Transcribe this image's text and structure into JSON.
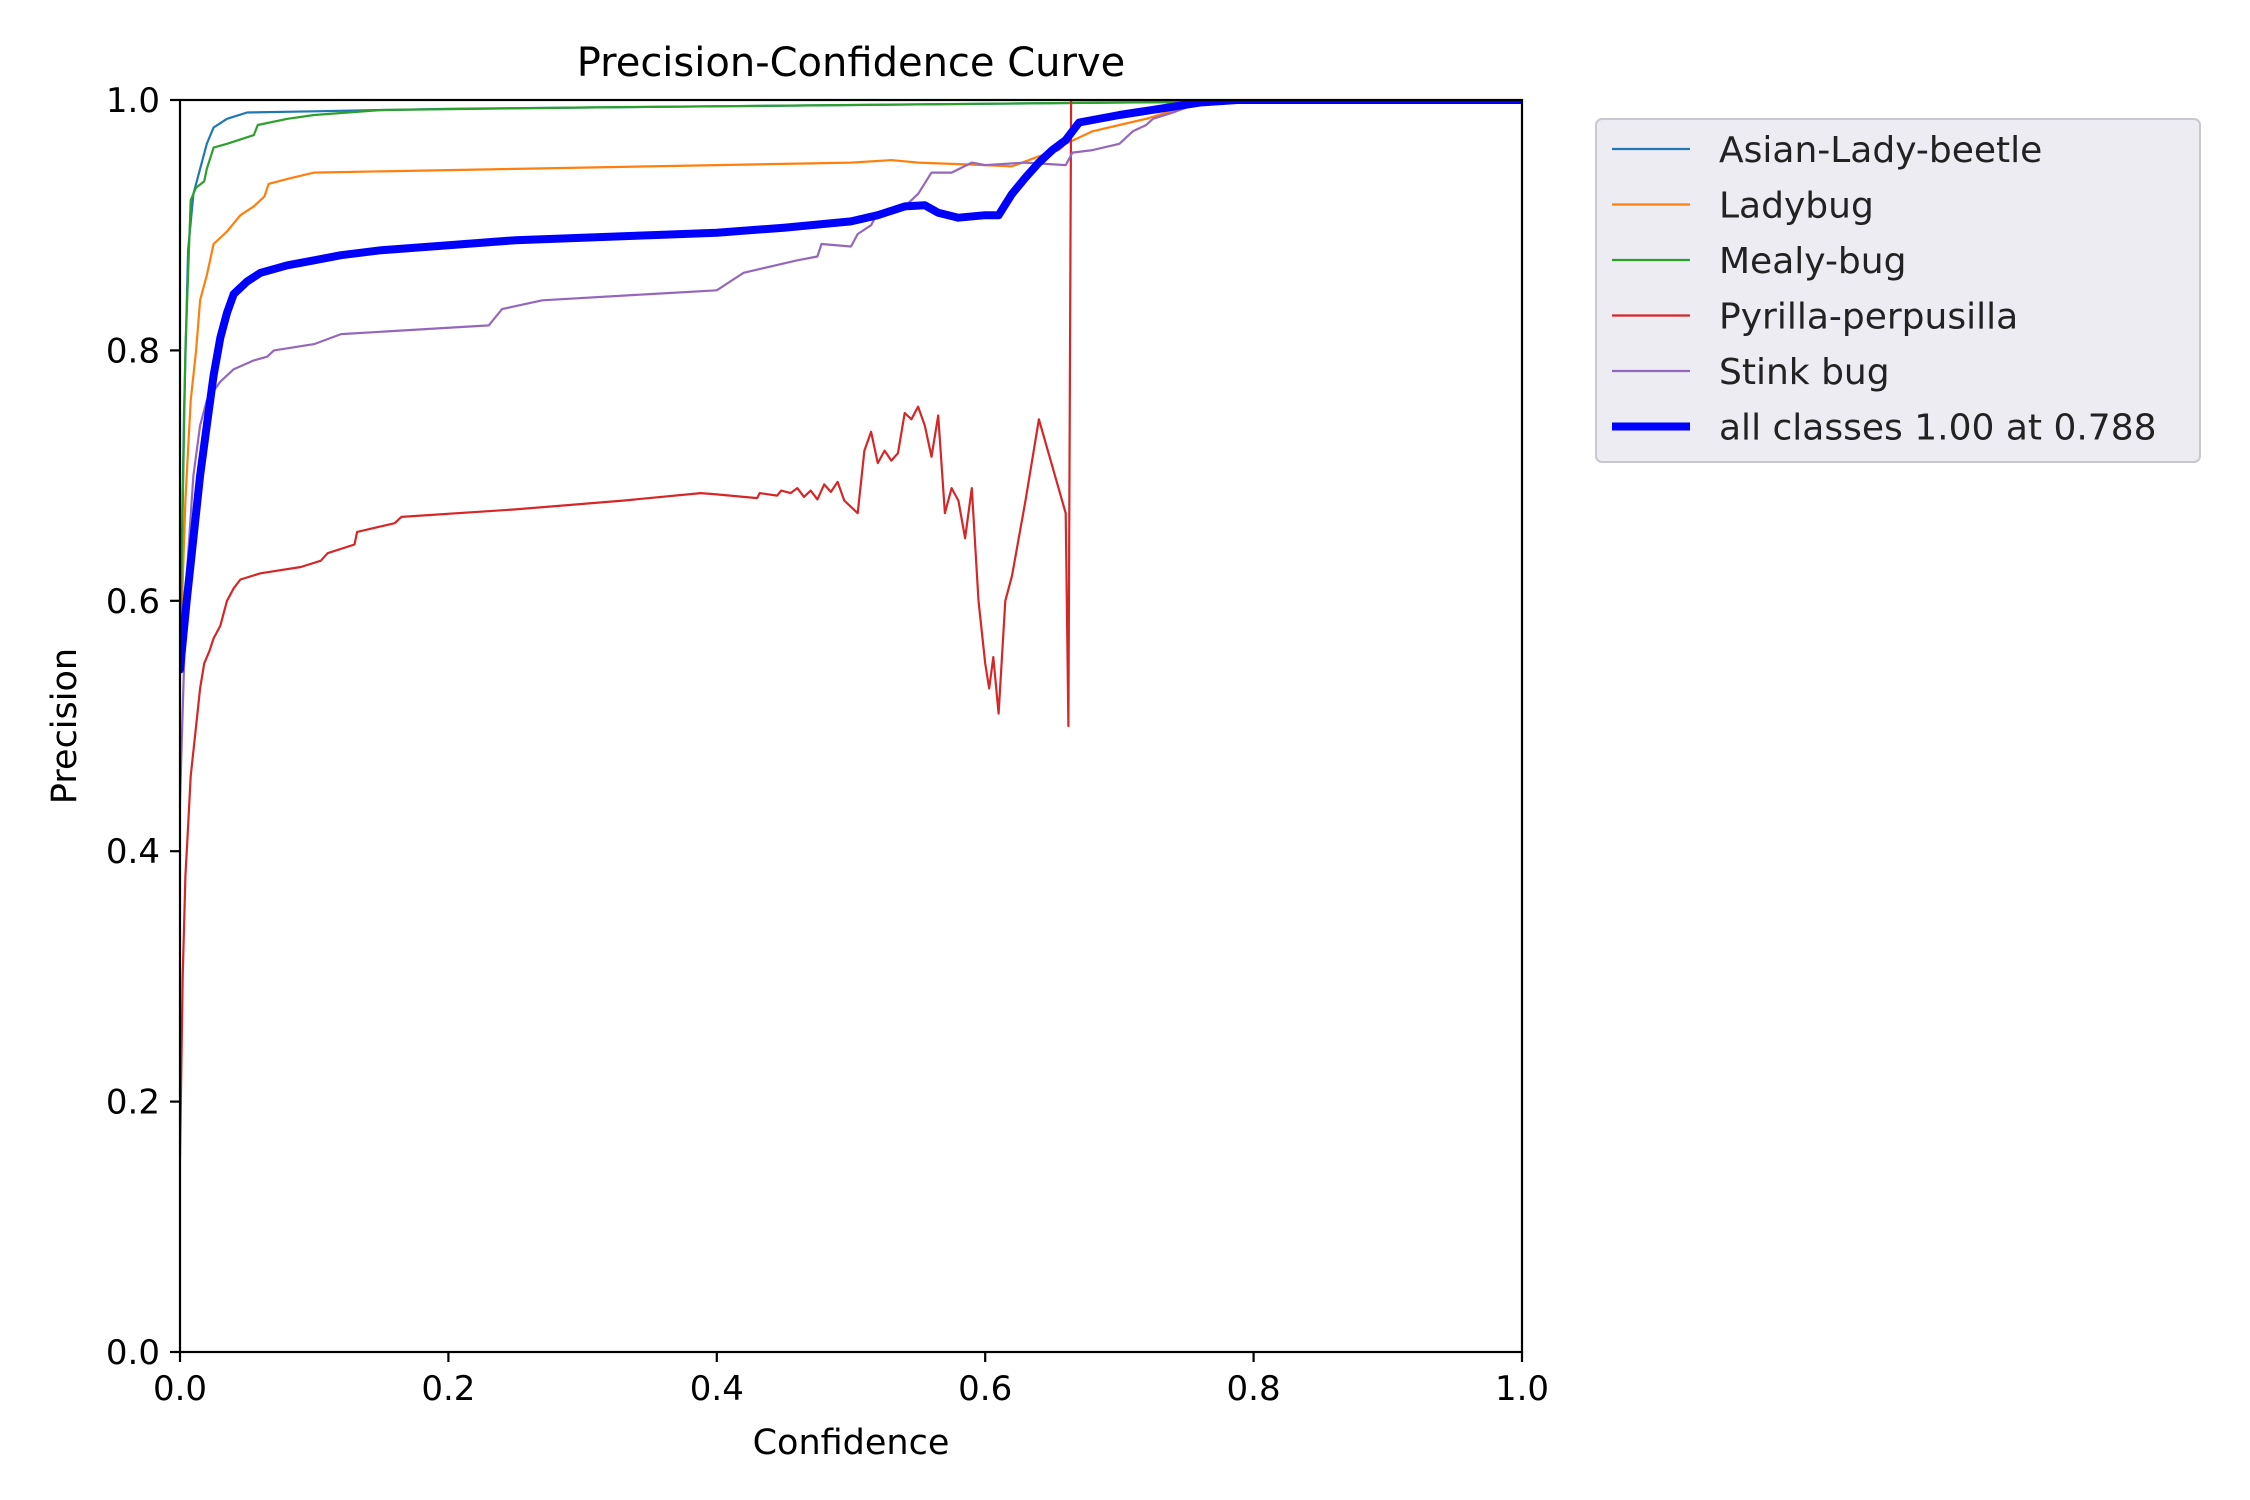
{
  "chart_data": {
    "type": "line",
    "title": "Precision-Confidence Curve",
    "xlabel": "Confidence",
    "ylabel": "Precision",
    "xlim": [
      0,
      1
    ],
    "ylim": [
      0,
      1
    ],
    "xticks": [
      "0.0",
      "0.2",
      "0.4",
      "0.6",
      "0.8",
      "1.0"
    ],
    "yticks": [
      "0.0",
      "0.2",
      "0.4",
      "0.6",
      "0.8",
      "1.0"
    ],
    "grid": false,
    "legend_position": "outside-top-right",
    "series": [
      {
        "name": "Asian-Lady-beetle",
        "color": "#1f77b4",
        "width": 2.2,
        "points": [
          [
            0,
            0.55
          ],
          [
            0.003,
            0.75
          ],
          [
            0.006,
            0.88
          ],
          [
            0.01,
            0.925
          ],
          [
            0.015,
            0.945
          ],
          [
            0.02,
            0.965
          ],
          [
            0.025,
            0.978
          ],
          [
            0.035,
            0.985
          ],
          [
            0.05,
            0.99
          ],
          [
            0.1,
            0.991
          ],
          [
            0.2,
            0.993
          ],
          [
            0.4,
            0.995
          ],
          [
            0.6,
            0.997
          ],
          [
            0.8,
            0.999
          ],
          [
            1.0,
            1.0
          ]
        ]
      },
      {
        "name": "Ladybug",
        "color": "#ff7f0e",
        "width": 2.2,
        "points": [
          [
            0,
            0.55
          ],
          [
            0.004,
            0.68
          ],
          [
            0.008,
            0.76
          ],
          [
            0.012,
            0.8
          ],
          [
            0.015,
            0.84
          ],
          [
            0.02,
            0.86
          ],
          [
            0.025,
            0.885
          ],
          [
            0.035,
            0.895
          ],
          [
            0.045,
            0.908
          ],
          [
            0.055,
            0.915
          ],
          [
            0.063,
            0.923
          ],
          [
            0.066,
            0.933
          ],
          [
            0.08,
            0.937
          ],
          [
            0.1,
            0.942
          ],
          [
            0.2,
            0.944
          ],
          [
            0.3,
            0.946
          ],
          [
            0.4,
            0.948
          ],
          [
            0.5,
            0.95
          ],
          [
            0.53,
            0.952
          ],
          [
            0.54,
            0.951
          ],
          [
            0.55,
            0.95
          ],
          [
            0.6,
            0.948
          ],
          [
            0.62,
            0.947
          ],
          [
            0.64,
            0.955
          ],
          [
            0.655,
            0.96
          ],
          [
            0.66,
            0.965
          ],
          [
            0.68,
            0.975
          ],
          [
            0.7,
            0.98
          ],
          [
            0.72,
            0.985
          ],
          [
            0.75,
            0.995
          ],
          [
            0.8,
            1.0
          ],
          [
            1.0,
            1.0
          ]
        ]
      },
      {
        "name": "Mealy-bug",
        "color": "#2ca02c",
        "width": 2.2,
        "points": [
          [
            0,
            0.55
          ],
          [
            0.004,
            0.8
          ],
          [
            0.008,
            0.92
          ],
          [
            0.012,
            0.93
          ],
          [
            0.018,
            0.935
          ],
          [
            0.02,
            0.945
          ],
          [
            0.025,
            0.962
          ],
          [
            0.035,
            0.965
          ],
          [
            0.055,
            0.972
          ],
          [
            0.058,
            0.98
          ],
          [
            0.08,
            0.985
          ],
          [
            0.1,
            0.988
          ],
          [
            0.15,
            0.992
          ],
          [
            0.3,
            0.994
          ],
          [
            0.5,
            0.996
          ],
          [
            0.7,
            0.998
          ],
          [
            1.0,
            1.0
          ]
        ]
      },
      {
        "name": "Pyrilla-perpusilla",
        "color": "#d62728",
        "width": 2.2,
        "points": [
          [
            0,
            0.155
          ],
          [
            0.002,
            0.3
          ],
          [
            0.004,
            0.38
          ],
          [
            0.006,
            0.42
          ],
          [
            0.008,
            0.46
          ],
          [
            0.01,
            0.48
          ],
          [
            0.012,
            0.5
          ],
          [
            0.015,
            0.53
          ],
          [
            0.018,
            0.55
          ],
          [
            0.022,
            0.56
          ],
          [
            0.025,
            0.57
          ],
          [
            0.03,
            0.58
          ],
          [
            0.035,
            0.6
          ],
          [
            0.04,
            0.61
          ],
          [
            0.045,
            0.617
          ],
          [
            0.06,
            0.622
          ],
          [
            0.09,
            0.627
          ],
          [
            0.105,
            0.632
          ],
          [
            0.11,
            0.638
          ],
          [
            0.13,
            0.645
          ],
          [
            0.132,
            0.655
          ],
          [
            0.16,
            0.662
          ],
          [
            0.165,
            0.667
          ],
          [
            0.25,
            0.673
          ],
          [
            0.33,
            0.68
          ],
          [
            0.388,
            0.686
          ],
          [
            0.4,
            0.685
          ],
          [
            0.43,
            0.682
          ],
          [
            0.432,
            0.686
          ],
          [
            0.445,
            0.684
          ],
          [
            0.448,
            0.688
          ],
          [
            0.455,
            0.686
          ],
          [
            0.46,
            0.69
          ],
          [
            0.465,
            0.683
          ],
          [
            0.47,
            0.688
          ],
          [
            0.475,
            0.681
          ],
          [
            0.48,
            0.693
          ],
          [
            0.485,
            0.687
          ],
          [
            0.49,
            0.695
          ],
          [
            0.495,
            0.68
          ],
          [
            0.505,
            0.67
          ],
          [
            0.51,
            0.72
          ],
          [
            0.515,
            0.735
          ],
          [
            0.52,
            0.71
          ],
          [
            0.525,
            0.72
          ],
          [
            0.53,
            0.712
          ],
          [
            0.535,
            0.718
          ],
          [
            0.54,
            0.75
          ],
          [
            0.545,
            0.745
          ],
          [
            0.55,
            0.755
          ],
          [
            0.555,
            0.74
          ],
          [
            0.56,
            0.715
          ],
          [
            0.565,
            0.748
          ],
          [
            0.57,
            0.67
          ],
          [
            0.575,
            0.69
          ],
          [
            0.58,
            0.68
          ],
          [
            0.585,
            0.65
          ],
          [
            0.59,
            0.69
          ],
          [
            0.595,
            0.6
          ],
          [
            0.6,
            0.55
          ],
          [
            0.603,
            0.53
          ],
          [
            0.606,
            0.555
          ],
          [
            0.61,
            0.51
          ],
          [
            0.615,
            0.6
          ],
          [
            0.62,
            0.62
          ],
          [
            0.63,
            0.68
          ],
          [
            0.64,
            0.745
          ],
          [
            0.66,
            0.67
          ],
          [
            0.662,
            0.5
          ],
          [
            0.664,
            1.0
          ],
          [
            0.7,
            1.0
          ],
          [
            1.0,
            1.0
          ]
        ]
      },
      {
        "name": "Stink bug",
        "color": "#9467bd",
        "width": 2.2,
        "points": [
          [
            0,
            0.44
          ],
          [
            0.005,
            0.62
          ],
          [
            0.01,
            0.7
          ],
          [
            0.015,
            0.74
          ],
          [
            0.02,
            0.76
          ],
          [
            0.03,
            0.775
          ],
          [
            0.04,
            0.785
          ],
          [
            0.055,
            0.792
          ],
          [
            0.065,
            0.795
          ],
          [
            0.07,
            0.8
          ],
          [
            0.1,
            0.805
          ],
          [
            0.12,
            0.813
          ],
          [
            0.23,
            0.82
          ],
          [
            0.24,
            0.833
          ],
          [
            0.27,
            0.84
          ],
          [
            0.35,
            0.845
          ],
          [
            0.4,
            0.848
          ],
          [
            0.41,
            0.855
          ],
          [
            0.42,
            0.862
          ],
          [
            0.46,
            0.872
          ],
          [
            0.475,
            0.875
          ],
          [
            0.478,
            0.885
          ],
          [
            0.5,
            0.883
          ],
          [
            0.505,
            0.893
          ],
          [
            0.515,
            0.9
          ],
          [
            0.52,
            0.91
          ],
          [
            0.54,
            0.915
          ],
          [
            0.55,
            0.925
          ],
          [
            0.56,
            0.942
          ],
          [
            0.575,
            0.942
          ],
          [
            0.59,
            0.95
          ],
          [
            0.6,
            0.948
          ],
          [
            0.63,
            0.95
          ],
          [
            0.66,
            0.948
          ],
          [
            0.665,
            0.958
          ],
          [
            0.68,
            0.96
          ],
          [
            0.7,
            0.965
          ],
          [
            0.71,
            0.975
          ],
          [
            0.72,
            0.98
          ],
          [
            0.725,
            0.985
          ],
          [
            0.74,
            0.99
          ],
          [
            0.76,
            0.998
          ],
          [
            0.8,
            1.0
          ],
          [
            1.0,
            1.0
          ]
        ]
      },
      {
        "name": "all classes 1.00 at 0.788",
        "color": "#0000ff",
        "width": 8,
        "points": [
          [
            0,
            0.545
          ],
          [
            0.005,
            0.6
          ],
          [
            0.01,
            0.65
          ],
          [
            0.015,
            0.7
          ],
          [
            0.02,
            0.74
          ],
          [
            0.025,
            0.78
          ],
          [
            0.03,
            0.81
          ],
          [
            0.035,
            0.83
          ],
          [
            0.04,
            0.845
          ],
          [
            0.05,
            0.855
          ],
          [
            0.06,
            0.862
          ],
          [
            0.08,
            0.868
          ],
          [
            0.1,
            0.872
          ],
          [
            0.12,
            0.876
          ],
          [
            0.15,
            0.88
          ],
          [
            0.2,
            0.884
          ],
          [
            0.25,
            0.888
          ],
          [
            0.3,
            0.89
          ],
          [
            0.35,
            0.892
          ],
          [
            0.4,
            0.894
          ],
          [
            0.45,
            0.898
          ],
          [
            0.5,
            0.903
          ],
          [
            0.52,
            0.908
          ],
          [
            0.54,
            0.915
          ],
          [
            0.555,
            0.916
          ],
          [
            0.565,
            0.91
          ],
          [
            0.58,
            0.906
          ],
          [
            0.6,
            0.908
          ],
          [
            0.61,
            0.908
          ],
          [
            0.62,
            0.925
          ],
          [
            0.63,
            0.938
          ],
          [
            0.64,
            0.95
          ],
          [
            0.65,
            0.96
          ],
          [
            0.66,
            0.968
          ],
          [
            0.67,
            0.982
          ],
          [
            0.7,
            0.988
          ],
          [
            0.73,
            0.993
          ],
          [
            0.76,
            0.998
          ],
          [
            0.788,
            1.0
          ],
          [
            1.0,
            1.0
          ]
        ]
      }
    ]
  }
}
